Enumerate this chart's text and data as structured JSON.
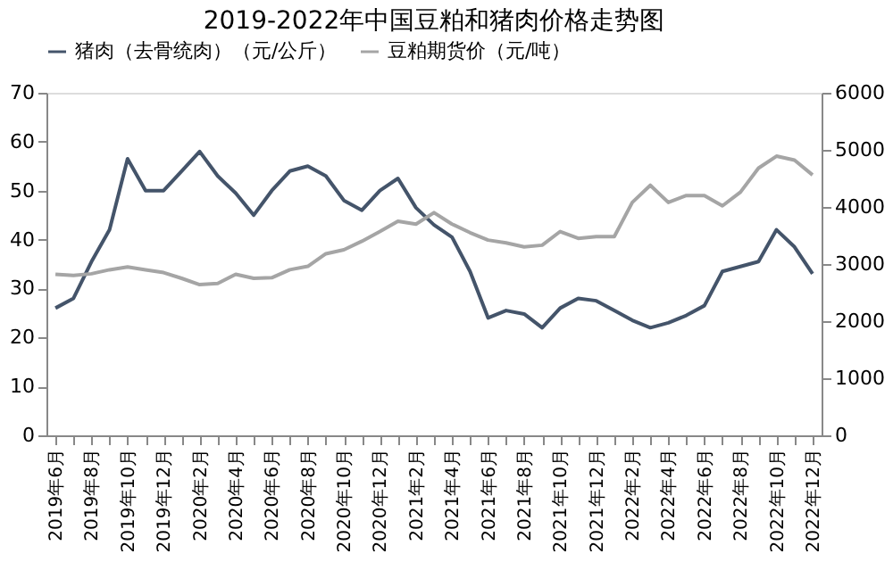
{
  "chart_data": {
    "type": "line",
    "title": "2019-2022年中国豆粕和猪肉价格走势图",
    "categories": [
      "2019年6月",
      null,
      "2019年8月",
      null,
      "2019年10月",
      null,
      "2019年12月",
      null,
      "2020年2月",
      null,
      "2020年4月",
      null,
      "2020年6月",
      null,
      "2020年8月",
      null,
      "2020年10月",
      null,
      "2020年12月",
      null,
      "2021年2月",
      null,
      "2021年4月",
      null,
      "2021年6月",
      null,
      "2021年8月",
      null,
      "2021年10月",
      null,
      "2021年12月",
      null,
      "2022年2月",
      null,
      "2022年4月",
      null,
      "2022年6月",
      null,
      "2022年8月",
      null,
      "2022年10月",
      null,
      "2022年12月"
    ],
    "series": [
      {
        "name": "猪肉（去骨统肉）（元/公斤）",
        "color": "#44546a",
        "values": [
          26,
          28,
          35.5,
          42,
          56.5,
          50,
          50,
          54,
          58,
          53,
          49.5,
          45,
          50,
          54,
          55,
          53,
          48,
          46,
          50,
          52.5,
          46.5,
          43,
          40.5,
          33.5,
          24,
          25.5,
          24.8,
          22,
          26,
          28,
          27.5,
          25.5,
          23.5,
          22,
          23,
          24.5,
          26.5,
          33.5,
          34.5,
          35.5,
          42,
          38.5,
          33
        ]
      },
      {
        "name": "豆粕期货价（元/吨）",
        "color": "#a5a5a5",
        "axis": "y2",
        "values": [
          2820,
          2800,
          2830,
          2900,
          2950,
          2900,
          2850,
          2750,
          2640,
          2660,
          2820,
          2750,
          2760,
          2900,
          2960,
          3180,
          3250,
          3400,
          3570,
          3750,
          3700,
          3900,
          3700,
          3550,
          3420,
          3370,
          3300,
          3330,
          3570,
          3450,
          3480,
          3480,
          4080,
          4380,
          4080,
          4200,
          4200,
          4020,
          4260,
          4680,
          4890,
          4820,
          4560
        ]
      }
    ],
    "ylim": [
      0,
      70
    ],
    "yticks": [
      0,
      10,
      20,
      30,
      40,
      50,
      60,
      70
    ],
    "y2lim": [
      0,
      6000
    ],
    "y2ticks": [
      0,
      1000,
      2000,
      3000,
      4000,
      5000,
      6000
    ],
    "grid": false,
    "legend": "top",
    "marker": "none",
    "line_style": "solid"
  }
}
